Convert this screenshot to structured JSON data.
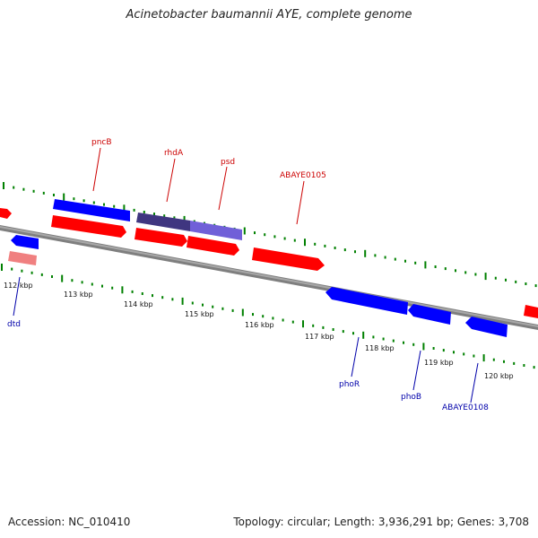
{
  "title": "Acinetobacter baumannii AYE, complete genome",
  "accession": "Accession: NC_010410",
  "summary": "Topology: circular; Length: 3,936,291 bp; Genes: 3,708",
  "colors": {
    "backbone": "#808080",
    "forward": "#ff0000",
    "forward_light": "#f08080",
    "reverse": "#0000ff",
    "reverse_dark": "#4b4090",
    "reverse_light": "#7a6be0",
    "tick": "#008000",
    "label_forward": "#cc0000",
    "label_reverse": "#0000aa"
  },
  "scale_ticks": [
    {
      "kbp": 112,
      "label": "112 kbp"
    },
    {
      "kbp": 113,
      "label": "113 kbp"
    },
    {
      "kbp": 114,
      "label": "114 kbp"
    },
    {
      "kbp": 115,
      "label": "115 kbp"
    },
    {
      "kbp": 116,
      "label": "116 kbp"
    },
    {
      "kbp": 117,
      "label": "117 kbp"
    },
    {
      "kbp": 118,
      "label": "118 kbp"
    },
    {
      "kbp": 119,
      "label": "119 kbp"
    },
    {
      "kbp": 120,
      "label": "120 kbp"
    }
  ],
  "gene_labels": [
    {
      "name": "pncB",
      "strand": "forward"
    },
    {
      "name": "rhdA",
      "strand": "forward"
    },
    {
      "name": "psd",
      "strand": "forward"
    },
    {
      "name": "ABAYE0105",
      "strand": "forward"
    },
    {
      "name": "dtd",
      "strand": "reverse"
    },
    {
      "name": "phoR",
      "strand": "reverse"
    },
    {
      "name": "phoB",
      "strand": "reverse"
    },
    {
      "name": "ABAYE0108",
      "strand": "reverse"
    }
  ]
}
